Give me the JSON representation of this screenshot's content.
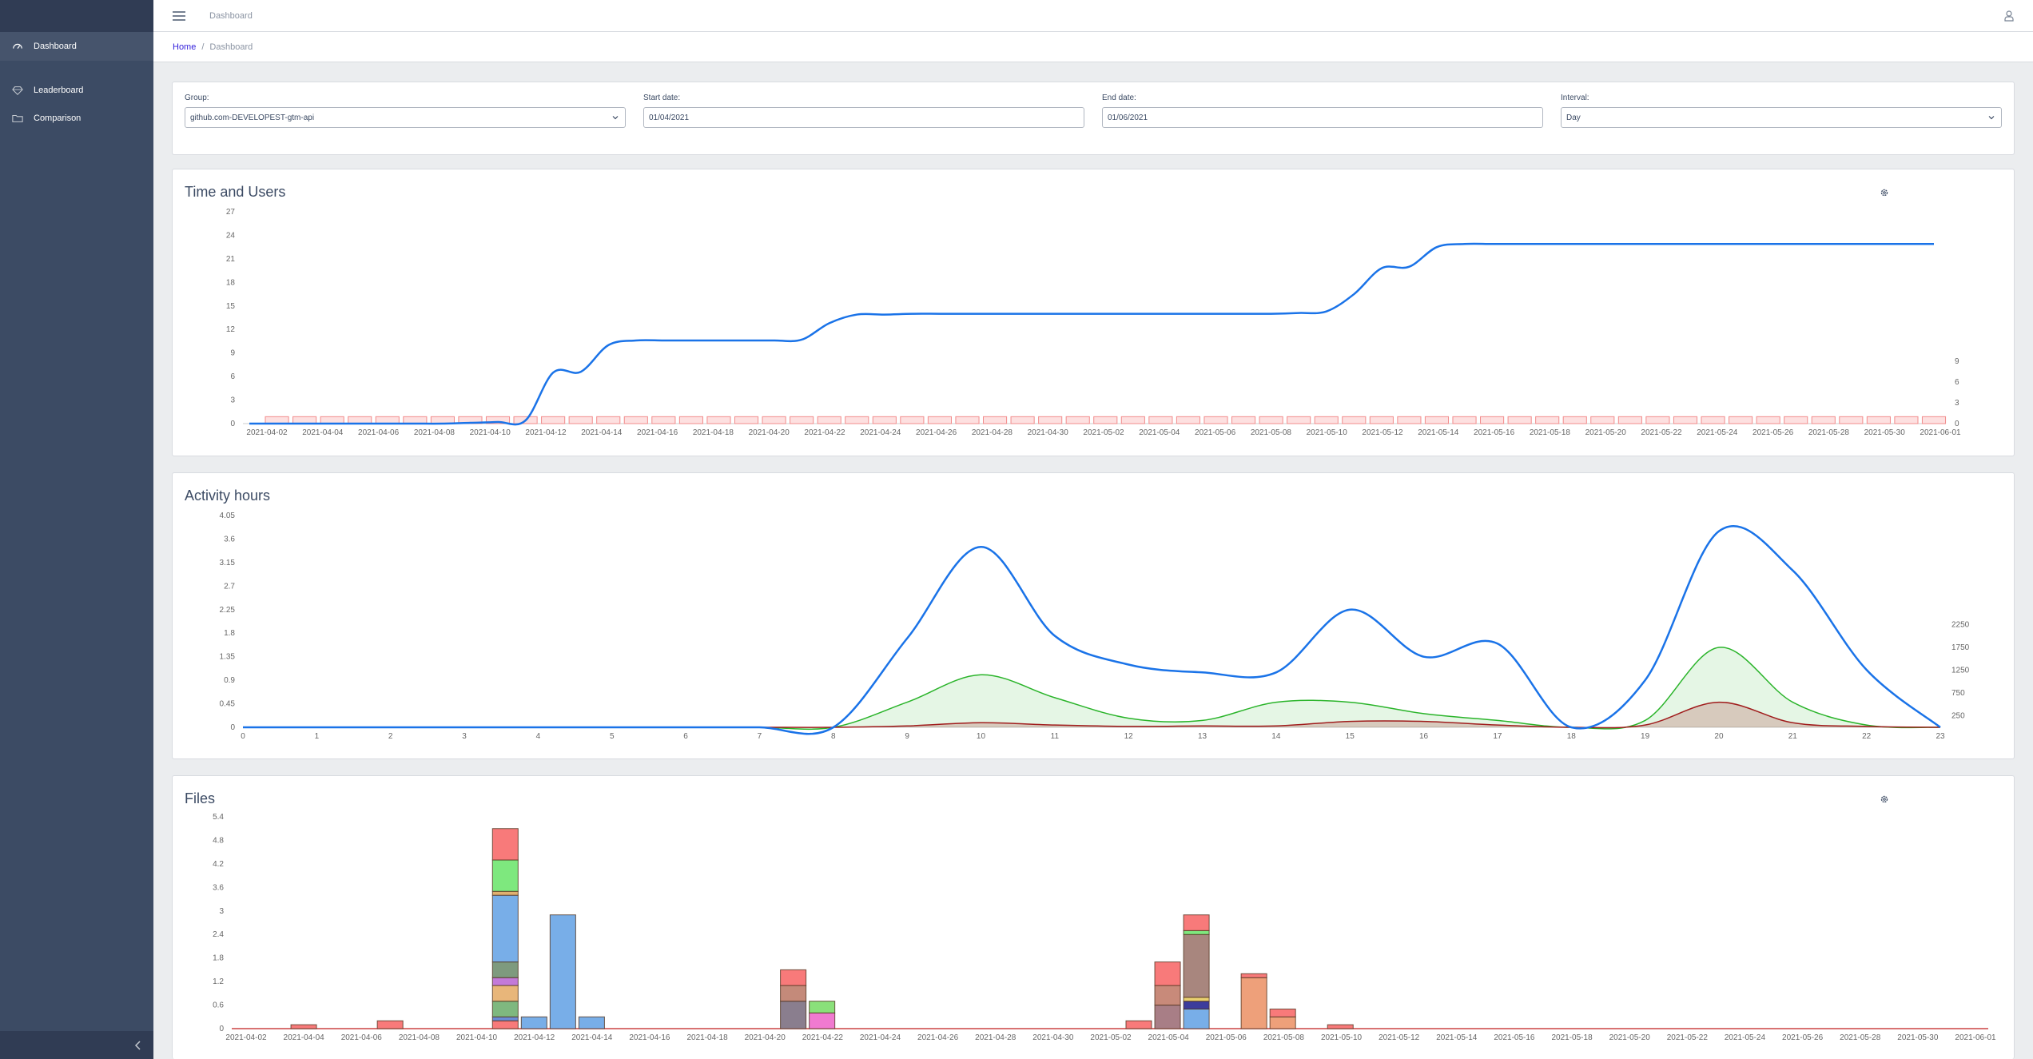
{
  "header": {
    "title": "Dashboard"
  },
  "breadcrumb": {
    "home": "Home",
    "current": "Dashboard"
  },
  "sidebar": {
    "items": [
      {
        "label": "Dashboard",
        "icon": "speedometer-icon",
        "active": true
      },
      {
        "label": "Leaderboard",
        "icon": "diamond-icon",
        "active": false
      },
      {
        "label": "Comparison",
        "icon": "folder-icon",
        "active": false
      }
    ]
  },
  "filters": {
    "group": {
      "label": "Group:",
      "value": "github.com-DEVELOPEST-gtm-api"
    },
    "start": {
      "label": "Start date:",
      "value": "01/04/2021"
    },
    "end": {
      "label": "End date:",
      "value": "01/06/2021"
    },
    "interval": {
      "label": "Interval:",
      "value": "Day"
    }
  },
  "cards": {
    "time_users": {
      "title": "Time and Users"
    },
    "activity": {
      "title": "Activity hours"
    },
    "files": {
      "title": "Files"
    }
  },
  "chart_data": [
    {
      "type": "line",
      "title": "Time and Users",
      "y_ticks": [
        "0",
        "3",
        "6",
        "9",
        "12",
        "15",
        "18",
        "21",
        "24",
        "27"
      ],
      "y2_ticks": [
        "0",
        "3",
        "6",
        "9"
      ],
      "x_tick_labels": [
        "2021-04-02",
        "2021-04-04",
        "2021-04-06",
        "2021-04-08",
        "2021-04-10",
        "2021-04-12",
        "2021-04-14",
        "2021-04-16",
        "2021-04-18",
        "2021-04-20",
        "2021-04-22",
        "2021-04-24",
        "2021-04-26",
        "2021-04-28",
        "2021-04-30",
        "2021-05-02",
        "2021-05-04",
        "2021-05-06",
        "2021-05-08",
        "2021-05-10",
        "2021-05-12",
        "2021-05-14",
        "2021-05-16",
        "2021-05-18",
        "2021-05-20",
        "2021-05-22",
        "2021-05-24",
        "2021-05-26",
        "2021-05-28",
        "2021-05-30",
        "2021-06-01"
      ],
      "ylim": [
        0,
        27
      ],
      "y2lim": [
        0,
        9
      ],
      "series": [
        {
          "color": "#1a73e8",
          "values": [
            0,
            0,
            0,
            0,
            0,
            0,
            0,
            0,
            0.1,
            0.2,
            0.4,
            6.5,
            6.6,
            10,
            10.6,
            10.6,
            10.6,
            10.6,
            10.6,
            10.6,
            10.7,
            12.8,
            13.9,
            13.9,
            14,
            14,
            14,
            14,
            14,
            14,
            14,
            14,
            14,
            14,
            14,
            14,
            14,
            14,
            14.1,
            14.3,
            16.5,
            19.8,
            20,
            22.5,
            22.9,
            22.9,
            22.9,
            22.9,
            22.9,
            22.9,
            22.9,
            22.9,
            22.9,
            22.9,
            22.9,
            22.9,
            22.9,
            22.9,
            22.9,
            22.9,
            22.9,
            22.9
          ]
        },
        {
          "color": "#f28b8b",
          "axis": "right",
          "bar": true,
          "values_note": "",
          "values": [
            0,
            1,
            1,
            1,
            1,
            1,
            1,
            1,
            1,
            1,
            1,
            1,
            1,
            1,
            1,
            1,
            1,
            1,
            1,
            1,
            1,
            1,
            1,
            1,
            1,
            1,
            1,
            1,
            1,
            1,
            1,
            1,
            1,
            1,
            1,
            1,
            1,
            1,
            1,
            1,
            1,
            1,
            1,
            1,
            1,
            1,
            1,
            1,
            1,
            1,
            1,
            1,
            1,
            1,
            1,
            1,
            1,
            1,
            1,
            1,
            1,
            1
          ]
        }
      ]
    },
    {
      "type": "area",
      "title": "Activity hours",
      "y_ticks": [
        "0",
        "0.45",
        "0.9",
        "1.35",
        "1.8",
        "2.25",
        "2.7",
        "3.15",
        "3.6",
        "4.05"
      ],
      "y2_ticks": [
        "250",
        "750",
        "1250",
        "1750",
        "2250"
      ],
      "categories": [
        "0",
        "1",
        "2",
        "3",
        "4",
        "5",
        "6",
        "7",
        "8",
        "9",
        "10",
        "11",
        "12",
        "13",
        "14",
        "15",
        "16",
        "17",
        "18",
        "19",
        "20",
        "21",
        "22",
        "23"
      ],
      "ylim": [
        0,
        4.05
      ],
      "y2lim": [
        0,
        2500
      ],
      "series": [
        {
          "color": "#1a73e8",
          "values": [
            0,
            0,
            0,
            0,
            0,
            0,
            0,
            0,
            0,
            1.7,
            3.45,
            1.75,
            1.2,
            1.05,
            1.05,
            2.25,
            1.35,
            1.6,
            0,
            0.9,
            3.75,
            3.0,
            1.1,
            0
          ]
        },
        {
          "color": "#2ab42a",
          "axis": "right",
          "values": [
            0,
            0,
            0,
            0,
            0,
            0,
            0,
            0,
            0,
            550,
            1150,
            650,
            200,
            150,
            550,
            550,
            300,
            150,
            0,
            150,
            1750,
            550,
            50,
            0
          ]
        },
        {
          "color": "#a01c1c",
          "axis": "right",
          "values": [
            0,
            0,
            0,
            0,
            0,
            0,
            0,
            0,
            0,
            30,
            100,
            50,
            20,
            30,
            30,
            130,
            130,
            50,
            0,
            50,
            550,
            100,
            20,
            0
          ]
        }
      ]
    },
    {
      "type": "bar",
      "title": "Files",
      "y_ticks": [
        "0",
        "0.6",
        "1.2",
        "1.8",
        "2.4",
        "3",
        "3.6",
        "4.2",
        "4.8",
        "5.4"
      ],
      "x_tick_labels": [
        "2021-04-02",
        "2021-04-04",
        "2021-04-06",
        "2021-04-08",
        "2021-04-10",
        "2021-04-12",
        "2021-04-14",
        "2021-04-16",
        "2021-04-18",
        "2021-04-20",
        "2021-04-22",
        "2021-04-24",
        "2021-04-26",
        "2021-04-28",
        "2021-04-30",
        "2021-05-02",
        "2021-05-04",
        "2021-05-06",
        "2021-05-08",
        "2021-05-10",
        "2021-05-12",
        "2021-05-14",
        "2021-05-16",
        "2021-05-18",
        "2021-05-20",
        "2021-05-22",
        "2021-05-24",
        "2021-05-26",
        "2021-05-28",
        "2021-05-30",
        "2021-06-01"
      ],
      "ylim": [
        0,
        5.4
      ],
      "bars": [
        {
          "day": 2,
          "stack": [
            {
              "v": 0.1,
              "color": "#f87a7a"
            }
          ]
        },
        {
          "day": 5,
          "stack": [
            {
              "v": 0.2,
              "color": "#f87a7a"
            }
          ]
        },
        {
          "day": 9,
          "stack": [
            {
              "v": 0.2,
              "color": "#f87a7a"
            },
            {
              "v": 0.1,
              "color": "#6b8cd6"
            },
            {
              "v": 0.4,
              "color": "#7fb87f"
            },
            {
              "v": 0.4,
              "color": "#e8b67a"
            },
            {
              "v": 0.2,
              "color": "#c37ad9"
            },
            {
              "v": 0.4,
              "color": "#7e9a7e"
            },
            {
              "v": 1.7,
              "color": "#78aee8"
            },
            {
              "v": 0.1,
              "color": "#e0b070"
            },
            {
              "v": 0.8,
              "color": "#7ee87e"
            },
            {
              "v": 0.8,
              "color": "#f87a7a"
            }
          ]
        },
        {
          "day": 10,
          "stack": [
            {
              "v": 0.3,
              "color": "#78aee8"
            }
          ]
        },
        {
          "day": 11,
          "stack": [
            {
              "v": 2.9,
              "color": "#78aee8"
            }
          ]
        },
        {
          "day": 12,
          "stack": [
            {
              "v": 0.3,
              "color": "#78aee8"
            }
          ]
        },
        {
          "day": 19,
          "stack": [
            {
              "v": 0.7,
              "color": "#8a7e8e"
            },
            {
              "v": 0.4,
              "color": "#c48a7a"
            },
            {
              "v": 0.4,
              "color": "#f87a7a"
            }
          ]
        },
        {
          "day": 20,
          "stack": [
            {
              "v": 0.4,
              "color": "#f07ad0"
            },
            {
              "v": 0.3,
              "color": "#8ae07a"
            }
          ]
        },
        {
          "day": 31,
          "stack": [
            {
              "v": 0.2,
              "color": "#f87a7a"
            }
          ]
        },
        {
          "day": 32,
          "stack": [
            {
              "v": 0.6,
              "color": "#a87e86"
            },
            {
              "v": 0.5,
              "color": "#c88a7a"
            },
            {
              "v": 0.6,
              "color": "#f87a7a"
            }
          ]
        },
        {
          "day": 33,
          "stack": [
            {
              "v": 0.5,
              "color": "#78aee8"
            },
            {
              "v": 0.2,
              "color": "#3c3c9c"
            },
            {
              "v": 0.1,
              "color": "#e8d070"
            },
            {
              "v": 1.6,
              "color": "#a8867e"
            },
            {
              "v": 0.1,
              "color": "#7ee87e"
            },
            {
              "v": 0.4,
              "color": "#f87a7a"
            }
          ]
        },
        {
          "day": 35,
          "stack": [
            {
              "v": 1.3,
              "color": "#eea07a"
            },
            {
              "v": 0.1,
              "color": "#f87a7a"
            }
          ]
        },
        {
          "day": 36,
          "stack": [
            {
              "v": 0.3,
              "color": "#eea07a"
            },
            {
              "v": 0.2,
              "color": "#f87a7a"
            }
          ]
        },
        {
          "day": 38,
          "stack": [
            {
              "v": 0.1,
              "color": "#f87a7a"
            }
          ]
        }
      ]
    }
  ]
}
